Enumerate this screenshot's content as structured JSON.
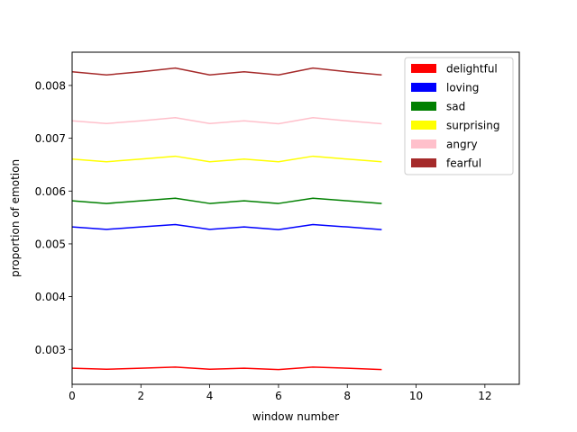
{
  "chart_data": {
    "type": "line",
    "title": "",
    "xlabel": "window number",
    "ylabel": "proportion of emotion",
    "xlim": [
      0,
      13
    ],
    "ylim": [
      0.00234,
      0.00863
    ],
    "xticks": [
      0,
      2,
      4,
      6,
      8,
      10,
      12
    ],
    "xtick_labels": [
      "0",
      "2",
      "4",
      "6",
      "8",
      "10",
      "12"
    ],
    "yticks": [
      0.003,
      0.004,
      0.005,
      0.006,
      0.007,
      0.008
    ],
    "ytick_labels": [
      "0.003",
      "0.004",
      "0.005",
      "0.006",
      "0.007",
      "0.008"
    ],
    "grid": false,
    "legend_position": "top-right",
    "x": [
      0,
      1,
      2,
      3,
      4,
      5,
      6,
      7,
      8,
      9
    ],
    "series": [
      {
        "name": "delightful",
        "color": "#ff0000",
        "values": [
          0.002645,
          0.002625,
          0.002645,
          0.002665,
          0.002625,
          0.002645,
          0.00262,
          0.002665,
          0.002645,
          0.00262
        ]
      },
      {
        "name": "loving",
        "color": "#0000ff",
        "values": [
          0.00532,
          0.005275,
          0.00532,
          0.005365,
          0.005275,
          0.00532,
          0.00527,
          0.005365,
          0.00532,
          0.00527
        ]
      },
      {
        "name": "sad",
        "color": "#008000",
        "values": [
          0.005815,
          0.005765,
          0.005815,
          0.005865,
          0.005765,
          0.005815,
          0.005765,
          0.005865,
          0.005815,
          0.005765
        ]
      },
      {
        "name": "surprising",
        "color": "#ffff00",
        "values": [
          0.006605,
          0.006555,
          0.006605,
          0.00666,
          0.006555,
          0.006605,
          0.006555,
          0.00666,
          0.006605,
          0.006555
        ]
      },
      {
        "name": "angry",
        "color": "#ffc0cb",
        "values": [
          0.00733,
          0.00728,
          0.00733,
          0.00739,
          0.00728,
          0.00733,
          0.007275,
          0.00739,
          0.00733,
          0.007275
        ]
      },
      {
        "name": "fearful",
        "color": "#a52a2a",
        "values": [
          0.00826,
          0.0082,
          0.00826,
          0.00833,
          0.0082,
          0.00826,
          0.0082,
          0.00833,
          0.00826,
          0.0082
        ]
      }
    ]
  }
}
